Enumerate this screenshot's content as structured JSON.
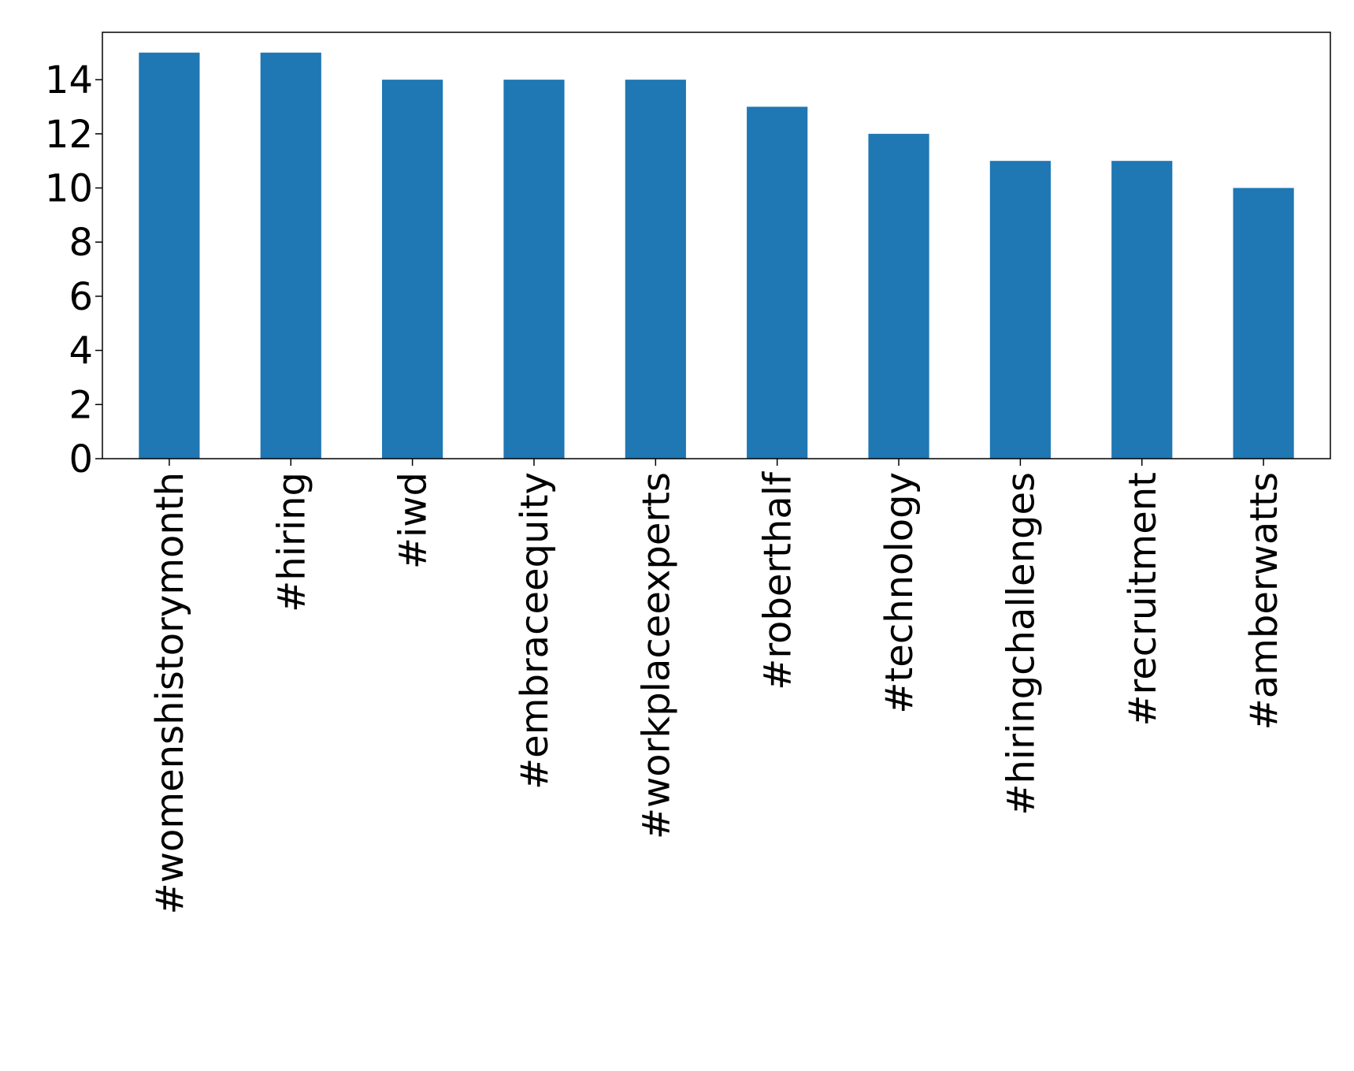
{
  "chart_data": {
    "type": "bar",
    "title": "",
    "xlabel": "",
    "ylabel": "",
    "categories": [
      "#womenshistorymonth",
      "#hiring",
      "#iwd",
      "#embraceequity",
      "#workplaceexperts",
      "#roberthalf",
      "#technology",
      "#hiringchallenges",
      "#recruitment",
      "#amberwatts"
    ],
    "values": [
      15,
      15,
      14,
      14,
      14,
      13,
      12,
      11,
      11,
      10
    ],
    "ylim": [
      0,
      15.75
    ],
    "yticks": [
      "0",
      "2",
      "4",
      "6",
      "8",
      "10",
      "12",
      "14"
    ],
    "grid": false,
    "bar_color": "#1f77b4"
  }
}
